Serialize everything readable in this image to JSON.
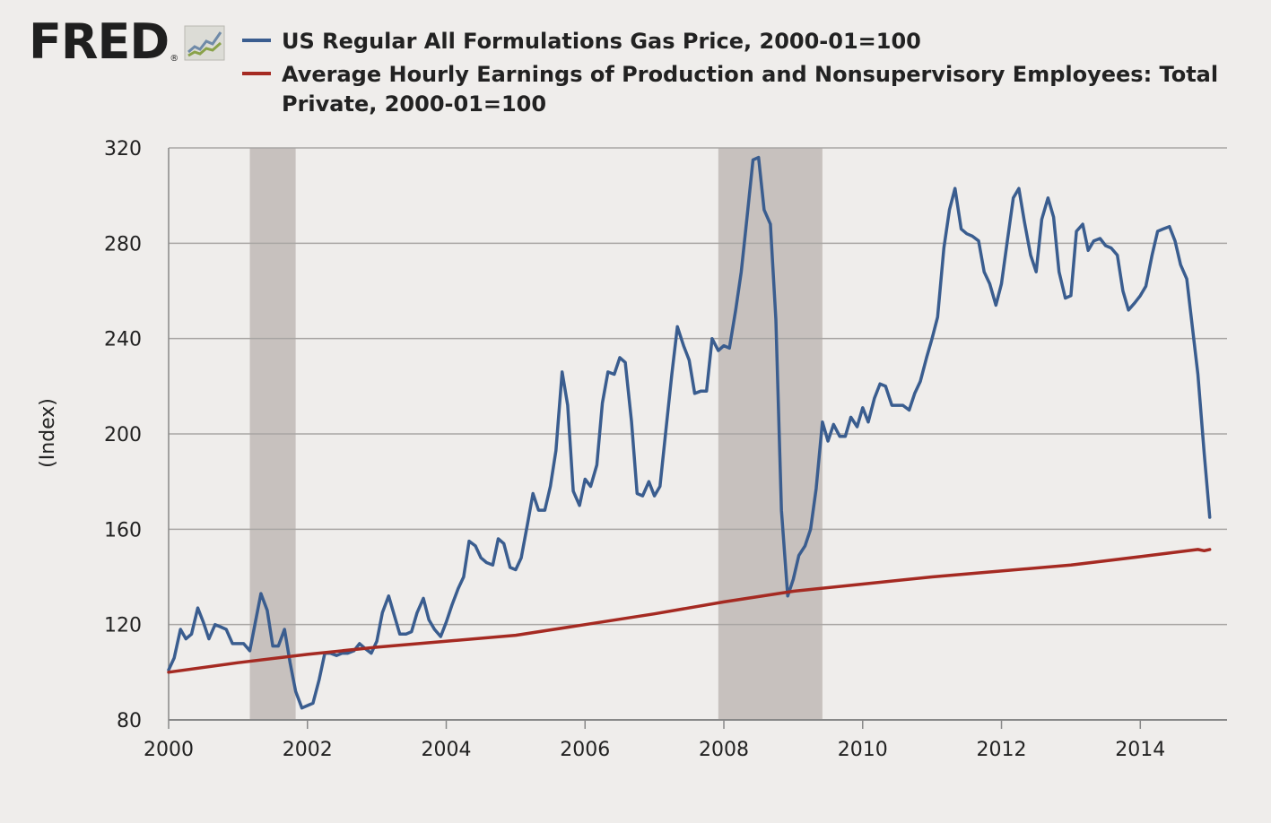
{
  "logo": {
    "text": "FRED",
    "reg": "®"
  },
  "chart_data": {
    "type": "line",
    "title": "",
    "xlabel": "",
    "ylabel": "(Index)",
    "xlim": [
      2000.0,
      2015.25
    ],
    "ylim": [
      80,
      320
    ],
    "xticks": [
      2000,
      2002,
      2004,
      2006,
      2008,
      2010,
      2012,
      2014
    ],
    "yticks": [
      80,
      120,
      160,
      200,
      240,
      280,
      320
    ],
    "grid": true,
    "recessions": [
      {
        "start": 2001.17,
        "end": 2001.83
      },
      {
        "start": 2007.92,
        "end": 2009.42
      }
    ],
    "colors": {
      "recession": "#c7c1be",
      "grid": "#a9a6a4",
      "axis": "#888888",
      "background": "#efedeb"
    },
    "series": [
      {
        "name": "US Regular All Formulations Gas Price, 2000-01=100",
        "color": "#3a5d8f",
        "points": [
          [
            2000.0,
            101
          ],
          [
            2000.08,
            106
          ],
          [
            2000.17,
            118
          ],
          [
            2000.25,
            114
          ],
          [
            2000.33,
            116
          ],
          [
            2000.42,
            127
          ],
          [
            2000.5,
            121
          ],
          [
            2000.58,
            114
          ],
          [
            2000.67,
            120
          ],
          [
            2000.75,
            119
          ],
          [
            2000.83,
            118
          ],
          [
            2000.92,
            112
          ],
          [
            2001.0,
            112
          ],
          [
            2001.08,
            112
          ],
          [
            2001.17,
            109
          ],
          [
            2001.25,
            121
          ],
          [
            2001.33,
            133
          ],
          [
            2001.42,
            126
          ],
          [
            2001.5,
            111
          ],
          [
            2001.58,
            111
          ],
          [
            2001.67,
            118
          ],
          [
            2001.75,
            104
          ],
          [
            2001.83,
            92
          ],
          [
            2001.92,
            85
          ],
          [
            2002.0,
            86
          ],
          [
            2002.08,
            87
          ],
          [
            2002.17,
            97
          ],
          [
            2002.25,
            108
          ],
          [
            2002.33,
            108
          ],
          [
            2002.42,
            107
          ],
          [
            2002.5,
            108
          ],
          [
            2002.58,
            108
          ],
          [
            2002.67,
            109
          ],
          [
            2002.75,
            112
          ],
          [
            2002.83,
            110
          ],
          [
            2002.92,
            108
          ],
          [
            2003.0,
            113
          ],
          [
            2003.08,
            125
          ],
          [
            2003.17,
            132
          ],
          [
            2003.25,
            124
          ],
          [
            2003.33,
            116
          ],
          [
            2003.42,
            116
          ],
          [
            2003.5,
            117
          ],
          [
            2003.58,
            125
          ],
          [
            2003.67,
            131
          ],
          [
            2003.75,
            122
          ],
          [
            2003.83,
            118
          ],
          [
            2003.92,
            115
          ],
          [
            2004.0,
            121
          ],
          [
            2004.08,
            128
          ],
          [
            2004.17,
            135
          ],
          [
            2004.25,
            140
          ],
          [
            2004.33,
            155
          ],
          [
            2004.42,
            153
          ],
          [
            2004.5,
            148
          ],
          [
            2004.58,
            146
          ],
          [
            2004.67,
            145
          ],
          [
            2004.75,
            156
          ],
          [
            2004.83,
            154
          ],
          [
            2004.92,
            144
          ],
          [
            2005.0,
            143
          ],
          [
            2005.08,
            148
          ],
          [
            2005.17,
            162
          ],
          [
            2005.25,
            175
          ],
          [
            2005.33,
            168
          ],
          [
            2005.42,
            168
          ],
          [
            2005.5,
            178
          ],
          [
            2005.58,
            193
          ],
          [
            2005.67,
            226
          ],
          [
            2005.75,
            212
          ],
          [
            2005.83,
            176
          ],
          [
            2005.92,
            170
          ],
          [
            2006.0,
            181
          ],
          [
            2006.08,
            178
          ],
          [
            2006.17,
            187
          ],
          [
            2006.25,
            213
          ],
          [
            2006.33,
            226
          ],
          [
            2006.42,
            225
          ],
          [
            2006.5,
            232
          ],
          [
            2006.58,
            230
          ],
          [
            2006.67,
            205
          ],
          [
            2006.75,
            175
          ],
          [
            2006.83,
            174
          ],
          [
            2006.92,
            180
          ],
          [
            2007.0,
            174
          ],
          [
            2007.08,
            178
          ],
          [
            2007.17,
            203
          ],
          [
            2007.25,
            225
          ],
          [
            2007.33,
            245
          ],
          [
            2007.42,
            237
          ],
          [
            2007.5,
            231
          ],
          [
            2007.58,
            217
          ],
          [
            2007.67,
            218
          ],
          [
            2007.75,
            218
          ],
          [
            2007.83,
            240
          ],
          [
            2007.92,
            235
          ],
          [
            2008.0,
            237
          ],
          [
            2008.08,
            236
          ],
          [
            2008.17,
            252
          ],
          [
            2008.25,
            268
          ],
          [
            2008.33,
            290
          ],
          [
            2008.42,
            315
          ],
          [
            2008.5,
            316
          ],
          [
            2008.58,
            294
          ],
          [
            2008.67,
            288
          ],
          [
            2008.75,
            248
          ],
          [
            2008.83,
            168
          ],
          [
            2008.92,
            132
          ],
          [
            2009.0,
            139
          ],
          [
            2009.08,
            149
          ],
          [
            2009.17,
            153
          ],
          [
            2009.25,
            160
          ],
          [
            2009.33,
            177
          ],
          [
            2009.42,
            205
          ],
          [
            2009.5,
            197
          ],
          [
            2009.58,
            204
          ],
          [
            2009.67,
            199
          ],
          [
            2009.75,
            199
          ],
          [
            2009.83,
            207
          ],
          [
            2009.92,
            203
          ],
          [
            2010.0,
            211
          ],
          [
            2010.08,
            205
          ],
          [
            2010.17,
            215
          ],
          [
            2010.25,
            221
          ],
          [
            2010.33,
            220
          ],
          [
            2010.42,
            212
          ],
          [
            2010.5,
            212
          ],
          [
            2010.58,
            212
          ],
          [
            2010.67,
            210
          ],
          [
            2010.75,
            217
          ],
          [
            2010.83,
            222
          ],
          [
            2010.92,
            232
          ],
          [
            2011.0,
            240
          ],
          [
            2011.08,
            249
          ],
          [
            2011.17,
            278
          ],
          [
            2011.25,
            294
          ],
          [
            2011.33,
            303
          ],
          [
            2011.42,
            286
          ],
          [
            2011.5,
            284
          ],
          [
            2011.58,
            283
          ],
          [
            2011.67,
            281
          ],
          [
            2011.75,
            268
          ],
          [
            2011.83,
            263
          ],
          [
            2011.92,
            254
          ],
          [
            2012.0,
            263
          ],
          [
            2012.08,
            280
          ],
          [
            2012.17,
            299
          ],
          [
            2012.25,
            303
          ],
          [
            2012.33,
            289
          ],
          [
            2012.42,
            275
          ],
          [
            2012.5,
            268
          ],
          [
            2012.58,
            290
          ],
          [
            2012.67,
            299
          ],
          [
            2012.75,
            291
          ],
          [
            2012.83,
            268
          ],
          [
            2012.92,
            257
          ],
          [
            2013.0,
            258
          ],
          [
            2013.08,
            285
          ],
          [
            2013.17,
            288
          ],
          [
            2013.25,
            277
          ],
          [
            2013.33,
            281
          ],
          [
            2013.42,
            282
          ],
          [
            2013.5,
            279
          ],
          [
            2013.58,
            278
          ],
          [
            2013.67,
            275
          ],
          [
            2013.75,
            260
          ],
          [
            2013.83,
            252
          ],
          [
            2013.92,
            255
          ],
          [
            2014.0,
            258
          ],
          [
            2014.08,
            262
          ],
          [
            2014.17,
            275
          ],
          [
            2014.25,
            285
          ],
          [
            2014.33,
            286
          ],
          [
            2014.42,
            287
          ],
          [
            2014.5,
            281
          ],
          [
            2014.58,
            271
          ],
          [
            2014.67,
            265
          ],
          [
            2014.75,
            245
          ],
          [
            2014.83,
            225
          ],
          [
            2014.92,
            192
          ],
          [
            2015.0,
            165
          ]
        ]
      },
      {
        "name": "Average Hourly Earnings of Production and Nonsupervisory Employees: Total Private, 2000-01=100",
        "color": "#a52a22",
        "points": [
          [
            2000.0,
            100
          ],
          [
            2001.0,
            104
          ],
          [
            2002.0,
            107.5
          ],
          [
            2003.0,
            110.5
          ],
          [
            2004.0,
            113
          ],
          [
            2005.0,
            115.5
          ],
          [
            2006.0,
            120
          ],
          [
            2007.0,
            124.5
          ],
          [
            2008.0,
            129.5
          ],
          [
            2009.0,
            134
          ],
          [
            2010.0,
            137
          ],
          [
            2011.0,
            140
          ],
          [
            2012.0,
            142.5
          ],
          [
            2013.0,
            145
          ],
          [
            2014.0,
            148.5
          ],
          [
            2014.83,
            151.5
          ],
          [
            2014.92,
            151
          ],
          [
            2015.0,
            151.5
          ]
        ]
      }
    ]
  }
}
